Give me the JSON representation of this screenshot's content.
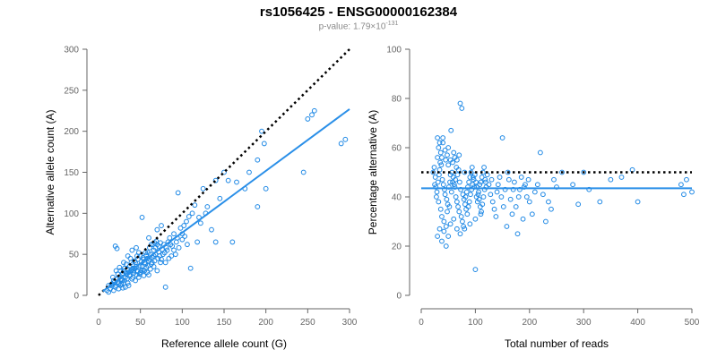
{
  "header": {
    "title": "rs1056425 - ENSG00000162384",
    "pvalue_prefix": "p-value: 1.79×10",
    "pvalue_exponent": "-131"
  },
  "colors": {
    "points": "#1e88e5",
    "fit": "#2a8fe8",
    "reference": "#000000",
    "axis": "#666666"
  },
  "chart_data": [
    {
      "type": "scatter",
      "title": "",
      "xlabel": "Reference allele count (G)",
      "ylabel": "Alternative allele count (A)",
      "xlim": [
        0,
        300
      ],
      "ylim": [
        0,
        300
      ],
      "xticks": [
        "0",
        "50",
        "100",
        "150",
        "200",
        "250",
        "300"
      ],
      "yticks": [
        "0",
        "50",
        "100",
        "150",
        "200",
        "250",
        "300"
      ],
      "reference_line": {
        "style": "dotted",
        "from": [
          0,
          0
        ],
        "to": [
          300,
          300
        ]
      },
      "fit_line": {
        "from": [
          5,
          5
        ],
        "to": [
          300,
          227
        ]
      },
      "points": [
        [
          80,
          10
        ],
        [
          95,
          125
        ],
        [
          110,
          33
        ],
        [
          118,
          65
        ],
        [
          100,
          68
        ],
        [
          140,
          65
        ],
        [
          160,
          65
        ],
        [
          175,
          130
        ],
        [
          190,
          108
        ],
        [
          200,
          130
        ],
        [
          190,
          165
        ],
        [
          195,
          200
        ],
        [
          198,
          185
        ],
        [
          245,
          150
        ],
        [
          250,
          215
        ],
        [
          255,
          220
        ],
        [
          258,
          225
        ],
        [
          290,
          185
        ],
        [
          295,
          190
        ],
        [
          20,
          60
        ],
        [
          22,
          57
        ],
        [
          52,
          95
        ],
        [
          60,
          70
        ],
        [
          65,
          62
        ],
        [
          70,
          80
        ],
        [
          75,
          85
        ],
        [
          85,
          70
        ],
        [
          90,
          75
        ],
        [
          105,
          90
        ],
        [
          120,
          95
        ],
        [
          130,
          108
        ],
        [
          135,
          80
        ],
        [
          140,
          140
        ],
        [
          150,
          150
        ],
        [
          155,
          140
        ],
        [
          125,
          130
        ],
        [
          115,
          110
        ],
        [
          100,
          75
        ],
        [
          80,
          40
        ],
        [
          70,
          30
        ],
        [
          60,
          25
        ],
        [
          55,
          40
        ],
        [
          45,
          35
        ],
        [
          40,
          20
        ],
        [
          35,
          15
        ],
        [
          30,
          30
        ],
        [
          25,
          22
        ],
        [
          20,
          10
        ],
        [
          15,
          12
        ],
        [
          10,
          6
        ],
        [
          12,
          4
        ],
        [
          18,
          18
        ],
        [
          28,
          25
        ],
        [
          33,
          38
        ],
        [
          38,
          45
        ],
        [
          42,
          30
        ],
        [
          48,
          52
        ],
        [
          50,
          48
        ],
        [
          58,
          45
        ],
        [
          62,
          50
        ],
        [
          66,
          55
        ],
        [
          72,
          60
        ],
        [
          78,
          62
        ],
        [
          82,
          55
        ],
        [
          88,
          60
        ],
        [
          92,
          50
        ],
        [
          55,
          30
        ],
        [
          50,
          28
        ],
        [
          45,
          25
        ],
        [
          40,
          32
        ],
        [
          36,
          28
        ],
        [
          32,
          22
        ],
        [
          28,
          18
        ],
        [
          24,
          14
        ],
        [
          22,
          20
        ],
        [
          26,
          30
        ],
        [
          30,
          40
        ],
        [
          35,
          48
        ],
        [
          40,
          55
        ],
        [
          45,
          58
        ],
        [
          30,
          15
        ],
        [
          34,
          20
        ],
        [
          38,
          25
        ],
        [
          42,
          27
        ],
        [
          46,
          30
        ],
        [
          52,
          35
        ],
        [
          56,
          38
        ],
        [
          60,
          42
        ],
        [
          64,
          46
        ],
        [
          68,
          50
        ],
        [
          72,
          53
        ],
        [
          76,
          56
        ],
        [
          14,
          8
        ],
        [
          16,
          14
        ],
        [
          19,
          16
        ],
        [
          21,
          12
        ],
        [
          23,
          26
        ],
        [
          27,
          20
        ],
        [
          29,
          27
        ],
        [
          31,
          33
        ],
        [
          37,
          35
        ],
        [
          39,
          40
        ],
        [
          41,
          38
        ],
        [
          43,
          42
        ],
        [
          47,
          44
        ],
        [
          49,
          36
        ],
        [
          51,
          41
        ],
        [
          53,
          46
        ],
        [
          57,
          49
        ],
        [
          59,
          52
        ],
        [
          61,
          58
        ],
        [
          63,
          62
        ],
        [
          67,
          64
        ],
        [
          69,
          66
        ],
        [
          71,
          45
        ],
        [
          73,
          48
        ],
        [
          77,
          50
        ],
        [
          79,
          52
        ],
        [
          81,
          58
        ],
        [
          83,
          65
        ],
        [
          86,
          62
        ],
        [
          94,
          70
        ],
        [
          98,
          82
        ],
        [
          102,
          85
        ],
        [
          108,
          96
        ],
        [
          112,
          100
        ],
        [
          18,
          6
        ],
        [
          24,
          8
        ],
        [
          26,
          12
        ],
        [
          32,
          10
        ],
        [
          36,
          12
        ],
        [
          44,
          18
        ],
        [
          48,
          22
        ],
        [
          54,
          24
        ],
        [
          58,
          28
        ],
        [
          62,
          32
        ],
        [
          66,
          35
        ],
        [
          74,
          40
        ],
        [
          84,
          45
        ],
        [
          90,
          55
        ],
        [
          96,
          58
        ],
        [
          106,
          62
        ],
        [
          12,
          12
        ],
        [
          17,
          22
        ],
        [
          25,
          34
        ],
        [
          33,
          26
        ],
        [
          37,
          24
        ],
        [
          43,
          33
        ],
        [
          47,
          29
        ],
        [
          53,
          31
        ],
        [
          57,
          34
        ],
        [
          63,
          38
        ],
        [
          67,
          42
        ],
        [
          75,
          44
        ],
        [
          87,
          48
        ],
        [
          93,
          65
        ],
        [
          103,
          72
        ],
        [
          122,
          88
        ],
        [
          128,
          100
        ],
        [
          145,
          118
        ],
        [
          165,
          138
        ],
        [
          180,
          150
        ],
        [
          21,
          30
        ],
        [
          23,
          16
        ],
        [
          27,
          14
        ],
        [
          29,
          9
        ],
        [
          31,
          18
        ],
        [
          35,
          32
        ],
        [
          39,
          30
        ],
        [
          41,
          22
        ],
        [
          44,
          40
        ],
        [
          46,
          48
        ],
        [
          49,
          26
        ],
        [
          51,
          30
        ],
        [
          54,
          44
        ],
        [
          56,
          52
        ],
        [
          59,
          36
        ],
        [
          61,
          44
        ],
        [
          64,
          40
        ],
        [
          66,
          48
        ],
        [
          68,
          58
        ],
        [
          70,
          62
        ],
        [
          74,
          64
        ]
      ]
    },
    {
      "type": "scatter",
      "title": "",
      "xlabel": "Total number of reads",
      "ylabel": "Percentage alternative (A)",
      "xlim": [
        0,
        500
      ],
      "ylim": [
        0,
        100
      ],
      "xticks": [
        "0",
        "100",
        "200",
        "300",
        "400",
        "500"
      ],
      "yticks": [
        "0",
        "20",
        "40",
        "60",
        "80",
        "100"
      ],
      "reference_line": {
        "style": "dotted",
        "y": 50
      },
      "fit_line": {
        "y": 43.5
      },
      "points": [
        [
          72,
          78
        ],
        [
          75,
          76
        ],
        [
          55,
          67
        ],
        [
          100,
          10.5
        ],
        [
          150,
          64
        ],
        [
          220,
          58
        ],
        [
          40,
          62
        ],
        [
          50,
          60
        ],
        [
          60,
          58
        ],
        [
          45,
          55
        ],
        [
          35,
          54
        ],
        [
          30,
          56
        ],
        [
          65,
          52
        ],
        [
          80,
          50
        ],
        [
          90,
          48
        ],
        [
          110,
          46
        ],
        [
          120,
          44
        ],
        [
          130,
          47
        ],
        [
          140,
          42
        ],
        [
          160,
          50
        ],
        [
          170,
          43
        ],
        [
          180,
          40
        ],
        [
          190,
          44
        ],
        [
          200,
          38
        ],
        [
          210,
          42
        ],
        [
          230,
          30
        ],
        [
          240,
          35
        ],
        [
          250,
          44
        ],
        [
          260,
          50
        ],
        [
          280,
          45
        ],
        [
          290,
          37
        ],
        [
          300,
          50
        ],
        [
          310,
          43
        ],
        [
          330,
          38
        ],
        [
          350,
          47
        ],
        [
          370,
          48
        ],
        [
          390,
          51
        ],
        [
          400,
          38
        ],
        [
          480,
          45
        ],
        [
          485,
          41
        ],
        [
          490,
          47
        ],
        [
          500,
          42
        ],
        [
          25,
          45
        ],
        [
          28,
          40
        ],
        [
          32,
          38
        ],
        [
          36,
          35
        ],
        [
          38,
          32
        ],
        [
          42,
          30
        ],
        [
          46,
          28
        ],
        [
          48,
          34
        ],
        [
          52,
          36
        ],
        [
          56,
          42
        ],
        [
          58,
          46
        ],
        [
          62,
          44
        ],
        [
          64,
          40
        ],
        [
          66,
          38
        ],
        [
          68,
          36
        ],
        [
          70,
          34
        ],
        [
          74,
          32
        ],
        [
          76,
          30
        ],
        [
          78,
          28
        ],
        [
          82,
          40
        ],
        [
          84,
          42
        ],
        [
          86,
          44
        ],
        [
          88,
          46
        ],
        [
          92,
          50
        ],
        [
          94,
          52
        ],
        [
          96,
          48
        ],
        [
          98,
          44
        ],
        [
          102,
          40
        ],
        [
          104,
          38
        ],
        [
          106,
          42
        ],
        [
          108,
          45
        ],
        [
          112,
          48
        ],
        [
          114,
          50
        ],
        [
          116,
          52
        ],
        [
          118,
          47
        ],
        [
          22,
          50
        ],
        [
          24,
          52
        ],
        [
          26,
          48
        ],
        [
          27,
          44
        ],
        [
          29,
          42
        ],
        [
          31,
          46
        ],
        [
          33,
          49
        ],
        [
          34,
          51
        ],
        [
          37,
          53
        ],
        [
          39,
          47
        ],
        [
          41,
          45
        ],
        [
          43,
          43
        ],
        [
          44,
          41
        ],
        [
          47,
          39
        ],
        [
          49,
          37
        ],
        [
          51,
          44
        ],
        [
          53,
          46
        ],
        [
          54,
          49
        ],
        [
          57,
          50
        ],
        [
          59,
          48
        ],
        [
          61,
          45
        ],
        [
          63,
          47
        ],
        [
          67,
          49
        ],
        [
          69,
          51
        ],
        [
          71,
          46
        ],
        [
          73,
          43
        ],
        [
          77,
          41
        ],
        [
          79,
          39
        ],
        [
          81,
          37
        ],
        [
          83,
          35
        ],
        [
          85,
          33
        ],
        [
          87,
          36
        ],
        [
          89,
          38
        ],
        [
          91,
          41
        ],
        [
          93,
          43
        ],
        [
          95,
          45
        ],
        [
          97,
          47
        ],
        [
          99,
          49
        ],
        [
          101,
          46
        ],
        [
          103,
          44
        ],
        [
          105,
          41
        ],
        [
          107,
          39
        ],
        [
          109,
          36
        ],
        [
          111,
          34
        ],
        [
          113,
          37
        ],
        [
          115,
          40
        ],
        [
          117,
          43
        ],
        [
          119,
          46
        ],
        [
          122,
          49
        ],
        [
          125,
          45
        ],
        [
          128,
          41
        ],
        [
          132,
          38
        ],
        [
          135,
          35
        ],
        [
          138,
          32
        ],
        [
          142,
          45
        ],
        [
          145,
          48
        ],
        [
          148,
          40
        ],
        [
          152,
          36
        ],
        [
          155,
          43
        ],
        [
          158,
          28
        ],
        [
          162,
          47
        ],
        [
          165,
          39
        ],
        [
          168,
          33
        ],
        [
          172,
          46
        ],
        [
          175,
          36
        ],
        [
          178,
          25
        ],
        [
          182,
          43
        ],
        [
          185,
          48
        ],
        [
          188,
          31
        ],
        [
          192,
          45
        ],
        [
          195,
          40
        ],
        [
          198,
          47
        ],
        [
          205,
          33
        ],
        [
          215,
          45
        ],
        [
          225,
          41
        ],
        [
          235,
          38
        ],
        [
          245,
          47
        ],
        [
          30,
          64
        ],
        [
          32,
          60
        ],
        [
          34,
          62
        ],
        [
          36,
          58
        ],
        [
          38,
          56
        ],
        [
          40,
          64
        ],
        [
          44,
          59
        ],
        [
          48,
          57
        ],
        [
          50,
          53
        ],
        [
          54,
          55
        ],
        [
          58,
          54
        ],
        [
          62,
          56
        ],
        [
          66,
          55
        ],
        [
          70,
          57
        ],
        [
          30,
          24
        ],
        [
          34,
          27
        ],
        [
          38,
          22
        ],
        [
          42,
          26
        ],
        [
          46,
          20
        ],
        [
          50,
          24
        ],
        [
          54,
          29
        ],
        [
          60,
          31
        ],
        [
          66,
          27
        ],
        [
          72,
          25
        ],
        [
          80,
          27
        ],
        [
          90,
          29
        ],
        [
          100,
          31
        ],
        [
          110,
          33
        ]
      ]
    }
  ]
}
